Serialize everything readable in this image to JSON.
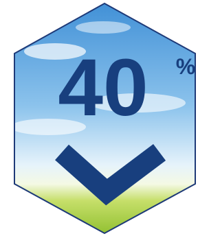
{
  "badge": {
    "number": "40",
    "unit": "%"
  }
}
